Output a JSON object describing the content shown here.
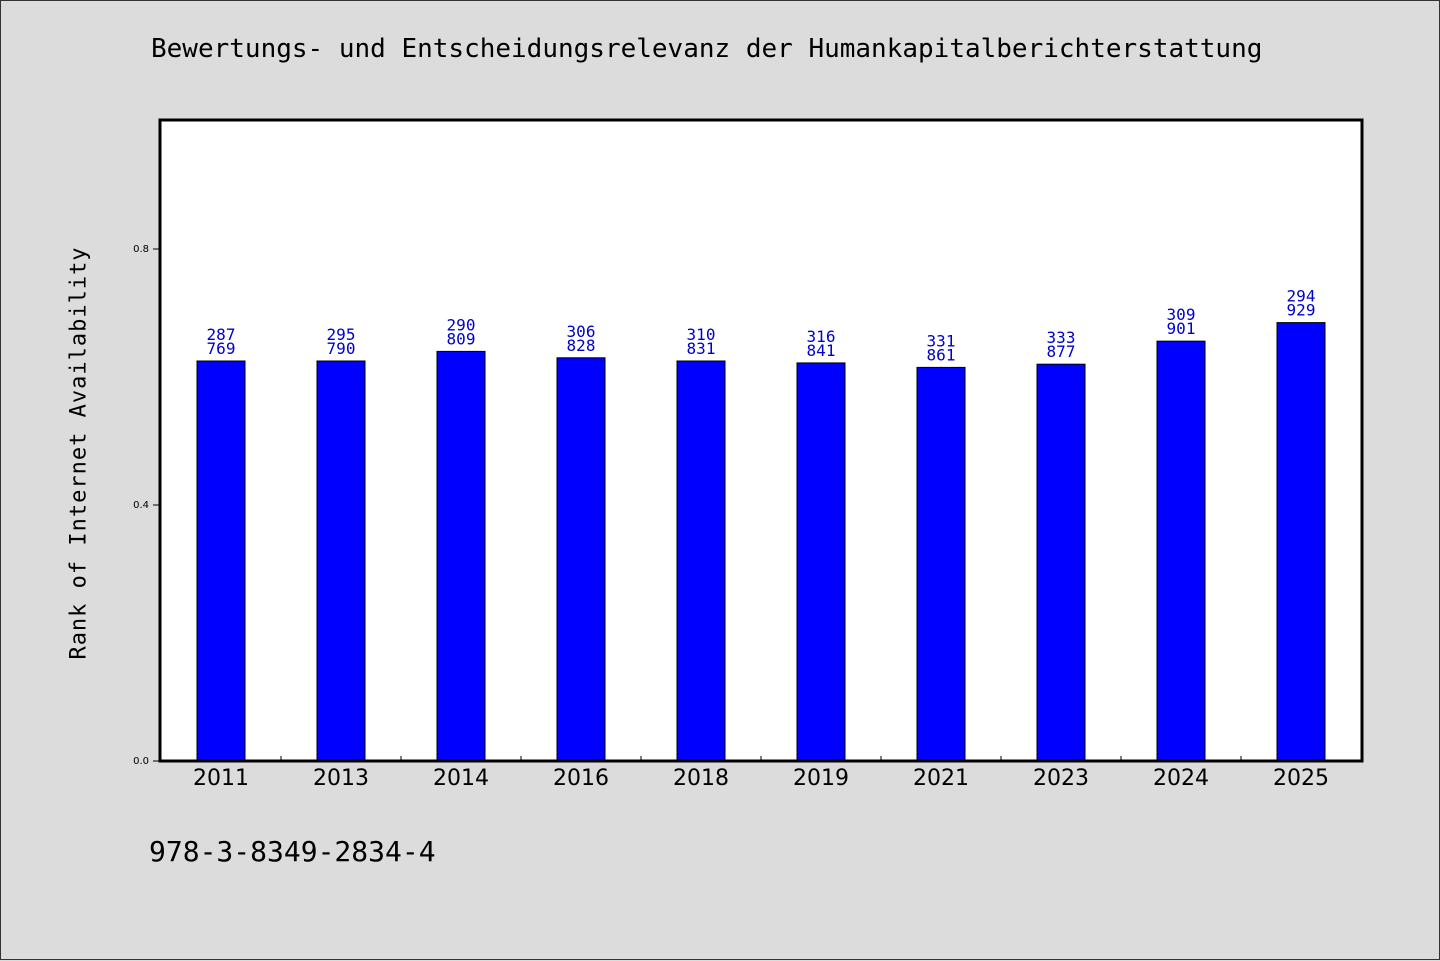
{
  "chart_data": {
    "type": "bar",
    "title": "Bewertungs- und Entscheidungsrelevanz der Humankapitalberichterstattung",
    "xlabel": "",
    "ylabel": "Rank of Internet Availability",
    "ylim": [
      0,
      1.0
    ],
    "yticks": [
      "0.0",
      "0.4",
      "0.8"
    ],
    "ytick_values": [
      0.0,
      0.4,
      0.8
    ],
    "categories": [
      "2011",
      "2013",
      "2014",
      "2016",
      "2018",
      "2019",
      "2021",
      "2023",
      "2024",
      "2025"
    ],
    "values": [
      0.625,
      0.625,
      0.64,
      0.63,
      0.625,
      0.622,
      0.615,
      0.62,
      0.656,
      0.685
    ],
    "label_top": [
      "287",
      "295",
      "290",
      "306",
      "310",
      "316",
      "331",
      "333",
      "309",
      "294"
    ],
    "label_bottom": [
      "769",
      "790",
      "809",
      "828",
      "831",
      "841",
      "861",
      "877",
      "901",
      "929"
    ],
    "bar_color": "#0000ff",
    "label_color": "#0000cc",
    "grid": false
  },
  "footer": {
    "isbn": "978-3-8349-2834-4"
  }
}
